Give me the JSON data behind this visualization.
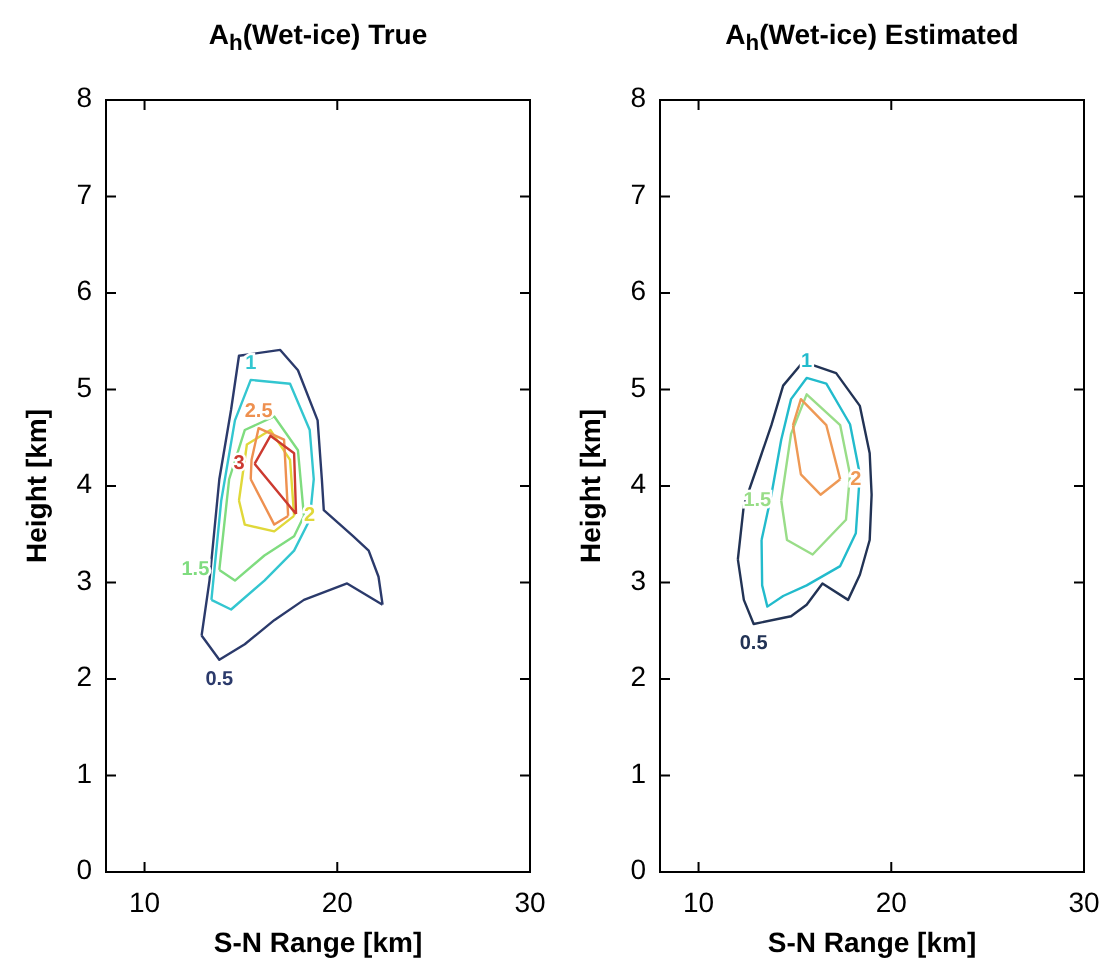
{
  "chart_data": [
    {
      "type": "line",
      "title": "A$_{h}$(Wet-ice) True",
      "xlabel": "S-N Range [km]",
      "ylabel": "Height [km]",
      "xlim": [
        8,
        30
      ],
      "xticks": [
        10,
        20,
        30
      ],
      "ylim": [
        0,
        8
      ],
      "yticks": [
        0,
        1,
        2,
        3,
        4,
        5,
        6,
        7,
        8
      ],
      "marker": "none",
      "series": [
        {
          "name": "0.5",
          "color": "#2b3a6b",
          "x": [
            12.96,
            13.37,
            13.88,
            14.49,
            14.9,
            17.04,
            17.96,
            18.98,
            19.2,
            19.3,
            20.82,
            21.63,
            22.14,
            22.35,
            null,
            12.96,
            13.88,
            15.2,
            16.73,
            18.27,
            20.51,
            22.35
          ],
          "values": [
            2.45,
            3.02,
            4.07,
            4.79,
            5.35,
            5.41,
            5.2,
            4.68,
            4.07,
            3.75,
            3.48,
            3.33,
            3.06,
            2.77,
            null,
            2.45,
            2.2,
            2.36,
            2.61,
            2.82,
            2.99,
            2.77
          ]
        },
        {
          "name": "1",
          "color": "#33c6d0",
          "x": [
            13.47,
            13.98,
            14.69,
            15.51,
            17.55,
            18.57,
            18.78,
            null,
            13.47,
            14.49,
            16.22,
            17.76,
            18.57,
            18.78
          ],
          "values": [
            2.82,
            3.85,
            4.68,
            5.1,
            5.06,
            4.58,
            4.07,
            null,
            2.82,
            2.72,
            3.02,
            3.33,
            3.65,
            4.07
          ]
        },
        {
          "name": "1.5",
          "color": "#7fdc7f",
          "x": [
            13.88,
            14.39,
            15.2,
            16.73,
            17.96,
            18.27,
            null,
            13.88,
            14.69,
            16.22,
            17.76,
            18.27
          ],
          "values": [
            3.13,
            4.07,
            4.58,
            4.72,
            4.37,
            3.69,
            null,
            3.13,
            3.02,
            3.28,
            3.48,
            3.69
          ]
        },
        {
          "name": "2",
          "color": "#e0d83a",
          "x": [
            14.9,
            15.31,
            16.53,
            17.55,
            17.76,
            null,
            14.9,
            15.2,
            16.73,
            17.76
          ],
          "values": [
            3.85,
            4.43,
            4.58,
            4.27,
            3.69,
            null,
            3.85,
            3.6,
            3.53,
            3.69
          ]
        },
        {
          "name": "2.5",
          "color": "#ee9050",
          "x": [
            15.51,
            15.55,
            15.92,
            17.24,
            17.45,
            null,
            15.51,
            16.73,
            17.45
          ],
          "values": [
            4.07,
            4.27,
            4.6,
            4.48,
            3.69,
            null,
            4.07,
            3.6,
            3.69
          ]
        },
        {
          "name": "3",
          "color": "#cc3a30",
          "x": [
            15.71,
            16.53,
            17.76,
            17.86,
            null,
            15.71,
            17.86
          ],
          "values": [
            4.23,
            4.52,
            4.34,
            3.71,
            null,
            4.23,
            3.71
          ]
        }
      ]
    },
    {
      "type": "line",
      "title": "A$_{h}$(Wet-ice) Estimated",
      "xlabel": "S-N Range [km]",
      "ylabel": "Height [km]",
      "xlim": [
        8,
        30
      ],
      "xticks": [
        10,
        20,
        30
      ],
      "ylim": [
        0,
        8
      ],
      "yticks": [
        0,
        1,
        2,
        3,
        4,
        5,
        6,
        7,
        8
      ],
      "marker": "none",
      "series": [
        {
          "name": "0.5",
          "color": "#223355",
          "x": [
            12.04,
            12.35,
            13.06,
            13.78,
            14.39,
            15.31,
            15.82,
            17.14,
            18.37,
            18.88,
            18.98,
            null,
            12.04,
            12.35,
            12.86,
            14.8,
            15.61,
            16.43,
            17.76,
            18.37,
            18.88,
            18.98
          ],
          "values": [
            3.24,
            3.8,
            4.21,
            4.63,
            5.04,
            5.26,
            5.26,
            5.17,
            4.83,
            4.34,
            3.91,
            null,
            3.24,
            2.82,
            2.57,
            2.65,
            2.77,
            2.99,
            2.82,
            3.08,
            3.44,
            3.91
          ]
        },
        {
          "name": "1",
          "color": "#22bbcc",
          "x": [
            13.27,
            13.78,
            14.29,
            14.8,
            15.61,
            16.63,
            17.86,
            18.37,
            null,
            13.27,
            13.3,
            13.57,
            14.39,
            15.61,
            17.35,
            18.16,
            18.37
          ],
          "values": [
            3.44,
            3.91,
            4.48,
            4.9,
            5.12,
            5.06,
            4.64,
            4.12,
            null,
            3.44,
            2.97,
            2.75,
            2.86,
            2.97,
            3.17,
            3.51,
            4.12
          ]
        },
        {
          "name": "1.5",
          "color": "#99dd88",
          "x": [
            14.29,
            14.8,
            15.61,
            17.35,
            17.86,
            null,
            14.29,
            14.59,
            15.92,
            17.65,
            17.86
          ],
          "values": [
            3.85,
            4.54,
            4.95,
            4.63,
            4.12,
            null,
            3.85,
            3.44,
            3.29,
            3.65,
            4.12
          ]
        },
        {
          "name": "2",
          "color": "#ee9955",
          "x": [
            14.9,
            15.31,
            16.63,
            17.35,
            null,
            14.9,
            15.31,
            16.33,
            17.35
          ],
          "values": [
            4.63,
            4.9,
            4.63,
            4.07,
            null,
            4.63,
            4.12,
            3.91,
            4.07
          ]
        }
      ]
    }
  ]
}
